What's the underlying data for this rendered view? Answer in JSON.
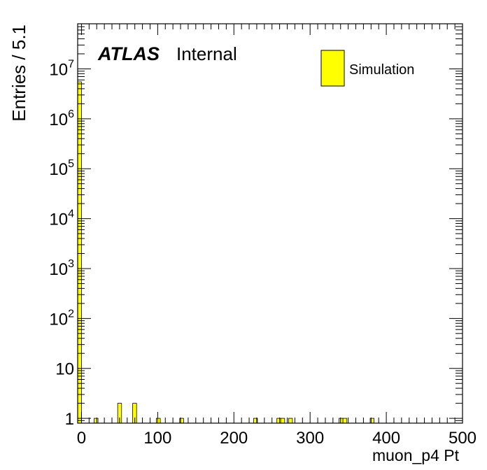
{
  "chart_data": {
    "type": "bar",
    "xlabel": "muon_p4 Pt",
    "ylabel": "Entries / 5.1",
    "xlim": [
      -5,
      500
    ],
    "ylim": [
      0.8,
      80000000
    ],
    "yscale": "log",
    "bin_width": 5.1,
    "x_ticks": [
      "0",
      "100",
      "200",
      "300",
      "400",
      "500"
    ],
    "y_ticks": [
      {
        "value": 1,
        "base": "1",
        "exp": ""
      },
      {
        "value": 10,
        "base": "10",
        "exp": ""
      },
      {
        "value": 100,
        "base": "10",
        "exp": "2"
      },
      {
        "value": 1000,
        "base": "10",
        "exp": "3"
      },
      {
        "value": 10000,
        "base": "10",
        "exp": "4"
      },
      {
        "value": 100000,
        "base": "10",
        "exp": "5"
      },
      {
        "value": 1000000,
        "base": "10",
        "exp": "6"
      },
      {
        "value": 10000000,
        "base": "10",
        "exp": "7"
      }
    ],
    "series": [
      {
        "name": "Simulation",
        "color": "#ffff00",
        "bins": [
          {
            "x": -5,
            "value": 5500000
          },
          {
            "x": 16.6,
            "value": 1
          },
          {
            "x": 47.5,
            "value": 2
          },
          {
            "x": 67.2,
            "value": 2
          },
          {
            "x": 98.3,
            "value": 1
          },
          {
            "x": 128.9,
            "value": 1
          },
          {
            "x": 225.8,
            "value": 1
          },
          {
            "x": 256.4,
            "value": 1
          },
          {
            "x": 261.5,
            "value": 1
          },
          {
            "x": 271.7,
            "value": 1
          },
          {
            "x": 338.0,
            "value": 1
          },
          {
            "x": 343.1,
            "value": 1
          },
          {
            "x": 378.8,
            "value": 1
          }
        ]
      }
    ],
    "grid": false,
    "legend": {
      "position": "top-right",
      "label": "Simulation"
    },
    "annotations": {
      "atlas": "ATLAS",
      "status": "Internal"
    }
  }
}
